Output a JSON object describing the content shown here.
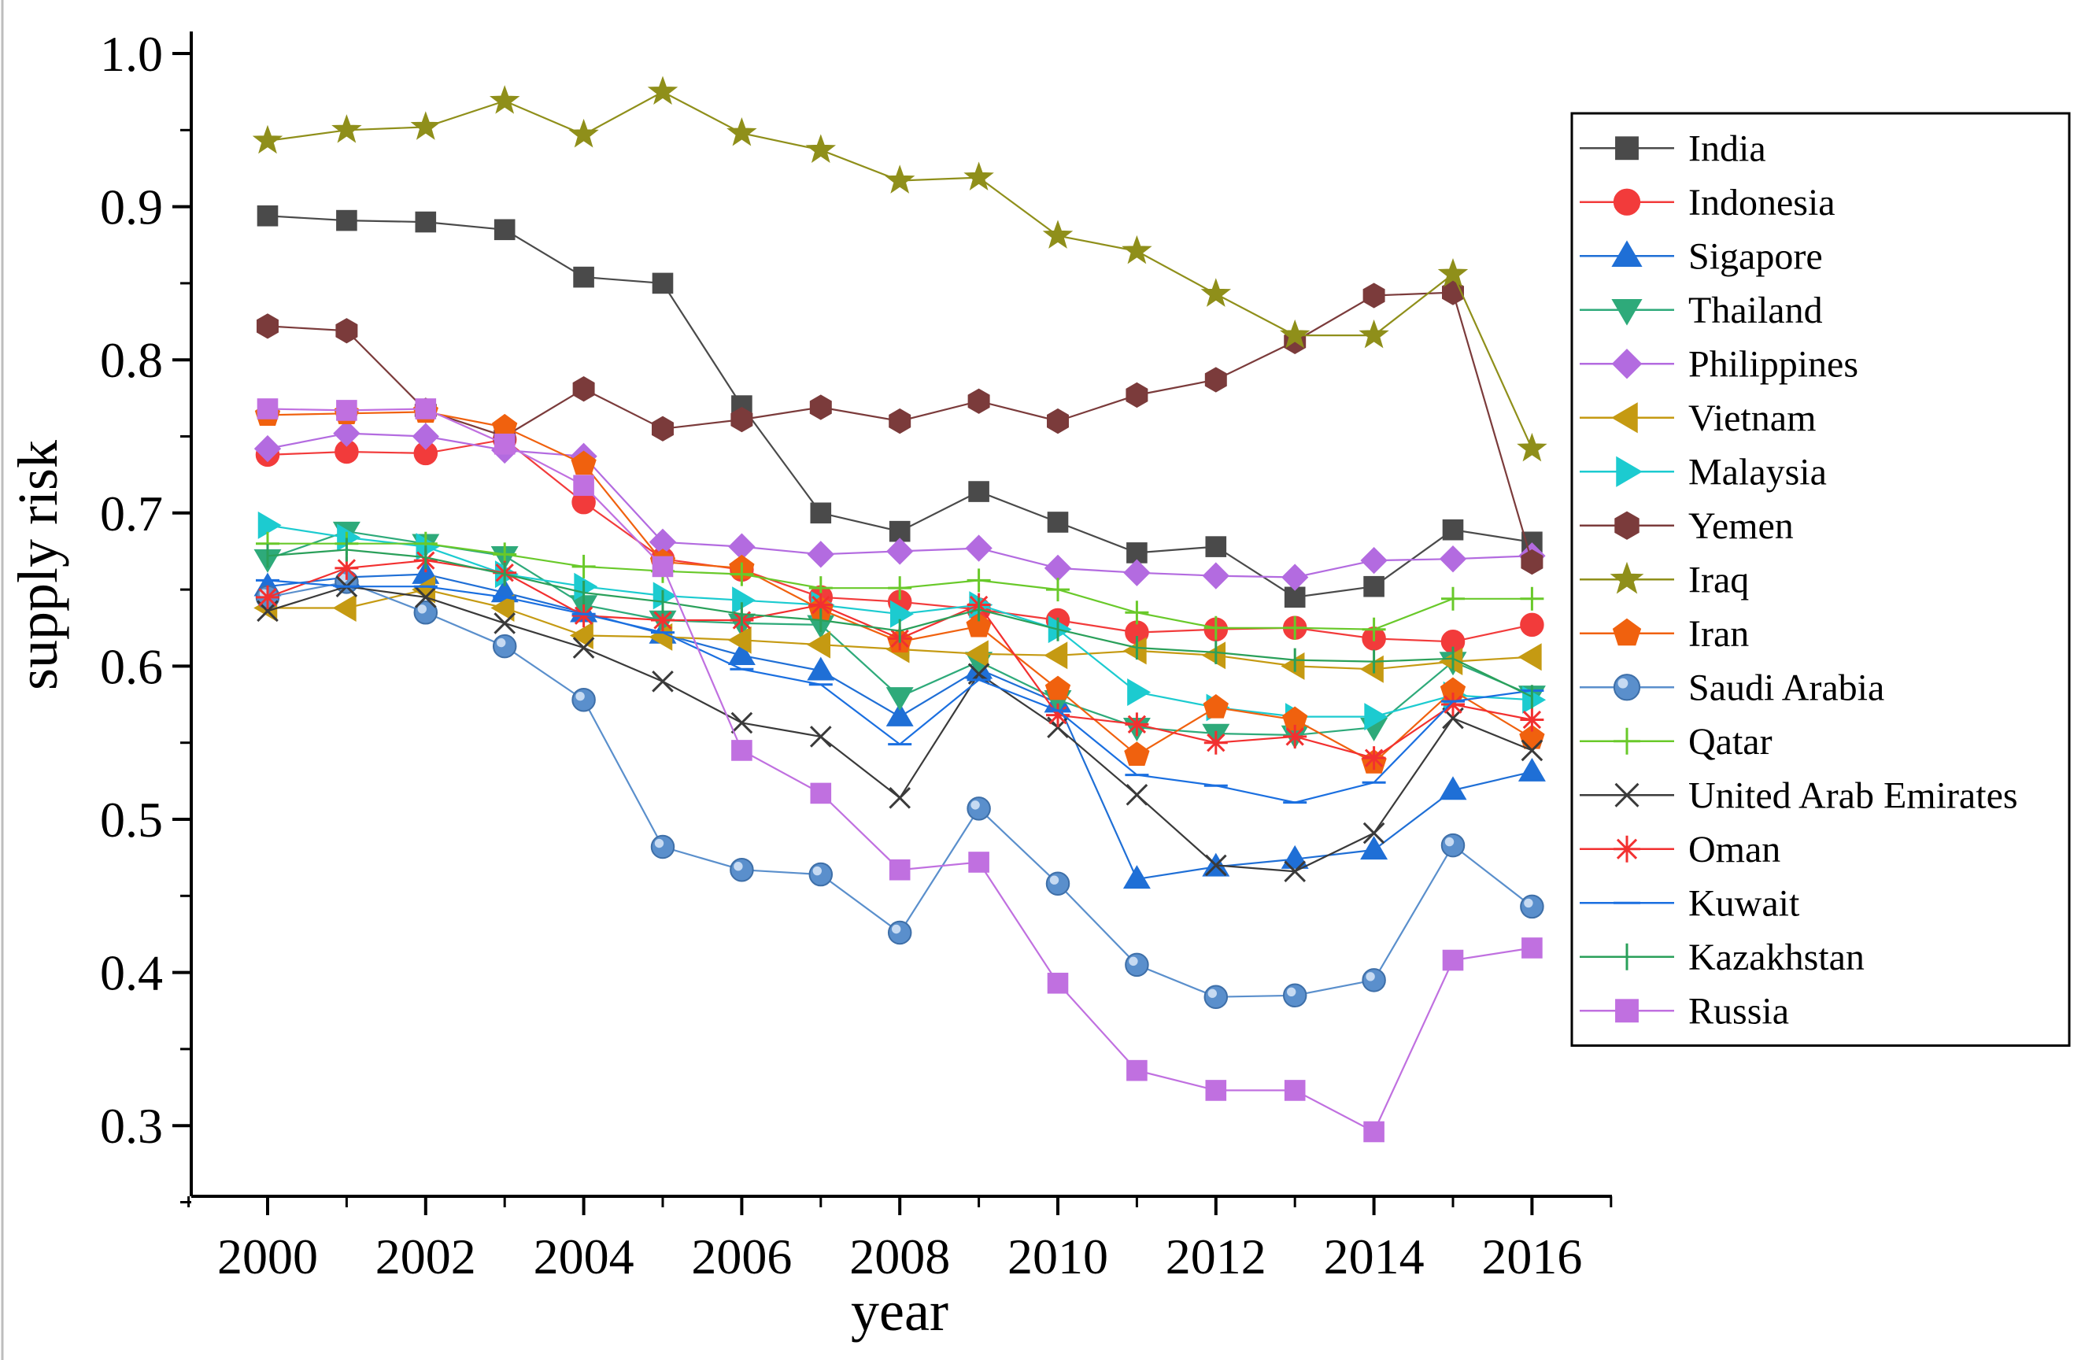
{
  "chart_data": {
    "type": "line",
    "xlabel": "year",
    "ylabel": "supply risk",
    "xlim": [
      1999,
      2017
    ],
    "ylim": [
      0.25,
      1.0
    ],
    "x": [
      2000,
      2001,
      2002,
      2003,
      2004,
      2005,
      2006,
      2007,
      2008,
      2009,
      2010,
      2011,
      2012,
      2013,
      2014,
      2015,
      2016
    ],
    "x_ticks": [
      "2000",
      "2002",
      "2004",
      "2006",
      "2008",
      "2010",
      "2012",
      "2014",
      "2016"
    ],
    "y_ticks": [
      "0.3",
      "0.4",
      "0.5",
      "0.6",
      "0.7",
      "0.8",
      "0.9",
      "1.0"
    ],
    "legend_position": "right",
    "series": [
      {
        "name": "India",
        "color": "#4a4a4a",
        "marker": "square",
        "values": [
          0.894,
          0.891,
          0.89,
          0.885,
          0.854,
          0.85,
          0.77,
          0.7,
          0.688,
          0.714,
          0.694,
          0.674,
          0.678,
          0.645,
          0.652,
          0.689,
          0.681
        ]
      },
      {
        "name": "Indonesia",
        "color": "#f23b3b",
        "marker": "circle",
        "values": [
          0.738,
          0.74,
          0.739,
          0.748,
          0.707,
          0.67,
          0.663,
          0.645,
          0.642,
          0.637,
          0.63,
          0.622,
          0.624,
          0.625,
          0.618,
          0.616,
          0.627
        ]
      },
      {
        "name": "Sigapore",
        "color": "#1f6fd6",
        "marker": "triangle-up",
        "values": [
          0.652,
          0.658,
          0.66,
          0.648,
          0.635,
          0.621,
          0.607,
          0.597,
          0.567,
          0.598,
          0.576,
          0.461,
          0.469,
          0.474,
          0.48,
          0.519,
          0.531
        ]
      },
      {
        "name": "Thailand",
        "color": "#2eaa7a",
        "marker": "triangle-down",
        "values": [
          0.67,
          0.688,
          0.68,
          0.672,
          0.64,
          0.63,
          0.628,
          0.627,
          0.58,
          0.603,
          0.578,
          0.56,
          0.556,
          0.555,
          0.56,
          0.603,
          0.581
        ]
      },
      {
        "name": "Philippines",
        "color": "#b36be0",
        "marker": "diamond",
        "values": [
          0.742,
          0.752,
          0.75,
          0.741,
          0.737,
          0.681,
          0.678,
          0.673,
          0.675,
          0.677,
          0.664,
          0.661,
          0.659,
          0.658,
          0.669,
          0.67,
          0.672
        ]
      },
      {
        "name": "Vietnam",
        "color": "#c59a12",
        "marker": "triangle-left",
        "values": [
          0.638,
          0.638,
          0.65,
          0.638,
          0.62,
          0.619,
          0.617,
          0.614,
          0.611,
          0.608,
          0.607,
          0.61,
          0.607,
          0.6,
          0.598,
          0.603,
          0.606
        ]
      },
      {
        "name": "Malaysia",
        "color": "#1ccbd0",
        "marker": "triangle-right",
        "values": [
          0.692,
          0.684,
          0.678,
          0.66,
          0.652,
          0.646,
          0.643,
          0.64,
          0.634,
          0.64,
          0.624,
          0.583,
          0.573,
          0.567,
          0.567,
          0.581,
          0.578
        ]
      },
      {
        "name": "Yemen",
        "color": "#7b3b3b",
        "marker": "hexagon",
        "values": [
          0.822,
          0.819,
          0.767,
          0.75,
          0.781,
          0.755,
          0.761,
          0.769,
          0.76,
          0.773,
          0.76,
          0.777,
          0.787,
          0.812,
          0.842,
          0.844,
          0.668
        ]
      },
      {
        "name": "Iraq",
        "color": "#8f8f1a",
        "marker": "star",
        "values": [
          0.943,
          0.95,
          0.952,
          0.969,
          0.947,
          0.975,
          0.948,
          0.937,
          0.917,
          0.919,
          0.881,
          0.871,
          0.843,
          0.816,
          0.816,
          0.856,
          0.742
        ]
      },
      {
        "name": "Iran",
        "color": "#f0610e",
        "marker": "pentagon",
        "values": [
          0.764,
          0.765,
          0.766,
          0.756,
          0.732,
          0.668,
          0.664,
          0.637,
          0.616,
          0.626,
          0.585,
          0.542,
          0.573,
          0.565,
          0.537,
          0.584,
          0.553
        ]
      },
      {
        "name": "Saudi Arabia",
        "color": "#5a8fcc",
        "marker": "sphere",
        "values": [
          0.645,
          0.655,
          0.635,
          0.613,
          0.578,
          0.482,
          0.467,
          0.464,
          0.426,
          0.507,
          0.458,
          0.405,
          0.384,
          0.385,
          0.395,
          0.483,
          0.443
        ]
      },
      {
        "name": "Qatar",
        "color": "#69c92a",
        "marker": "plus",
        "values": [
          0.68,
          0.68,
          0.68,
          0.673,
          0.665,
          0.662,
          0.66,
          0.651,
          0.651,
          0.656,
          0.65,
          0.635,
          0.625,
          0.625,
          0.624,
          0.644,
          0.644
        ]
      },
      {
        "name": "United Arab Emirates",
        "color": "#3a3a3a",
        "marker": "x",
        "values": [
          0.636,
          0.652,
          0.645,
          0.628,
          0.612,
          0.59,
          0.563,
          0.554,
          0.514,
          0.595,
          0.56,
          0.516,
          0.47,
          0.466,
          0.491,
          0.566,
          0.545
        ]
      },
      {
        "name": "Oman",
        "color": "#f23030",
        "marker": "asterisk",
        "values": [
          0.645,
          0.664,
          0.669,
          0.661,
          0.633,
          0.63,
          0.63,
          0.64,
          0.618,
          0.64,
          0.568,
          0.562,
          0.55,
          0.554,
          0.54,
          0.575,
          0.565
        ]
      },
      {
        "name": "Kuwait",
        "color": "#1a6fe0",
        "marker": "hline",
        "values": [
          0.656,
          0.652,
          0.652,
          0.645,
          0.634,
          0.622,
          0.598,
          0.588,
          0.549,
          0.591,
          0.571,
          0.529,
          0.522,
          0.511,
          0.524,
          0.577,
          0.584
        ]
      },
      {
        "name": "Kazakhstan",
        "color": "#2aa05a",
        "marker": "vline",
        "values": [
          0.672,
          0.676,
          0.671,
          0.66,
          0.648,
          0.642,
          0.634,
          0.63,
          0.623,
          0.637,
          0.624,
          0.612,
          0.609,
          0.604,
          0.603,
          0.605,
          0.58
        ]
      },
      {
        "name": "Russia",
        "color": "#c070e0",
        "marker": "square",
        "values": [
          0.768,
          0.767,
          0.768,
          0.745,
          0.718,
          0.665,
          0.545,
          0.517,
          0.467,
          0.472,
          0.393,
          0.336,
          0.323,
          0.323,
          0.296,
          0.408,
          0.416
        ]
      }
    ]
  }
}
